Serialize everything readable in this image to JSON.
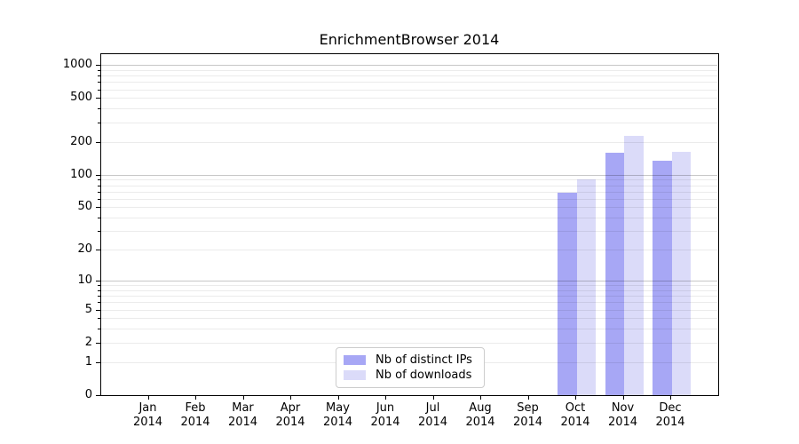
{
  "chart_data": {
    "type": "bar",
    "title": "EnrichmentBrowser 2014",
    "yscale": "log1p",
    "grid": true,
    "ylim": [
      0,
      1180
    ],
    "yticks": [
      0,
      1,
      2,
      5,
      10,
      20,
      50,
      100,
      200,
      500,
      1000
    ],
    "minor_gridlines": [
      3,
      4,
      6,
      7,
      8,
      9,
      30,
      40,
      60,
      70,
      80,
      90,
      300,
      400,
      600,
      700,
      800,
      900
    ],
    "categories": [
      {
        "month": "Jan",
        "year": "2014"
      },
      {
        "month": "Feb",
        "year": "2014"
      },
      {
        "month": "Mar",
        "year": "2014"
      },
      {
        "month": "Apr",
        "year": "2014"
      },
      {
        "month": "May",
        "year": "2014"
      },
      {
        "month": "Jun",
        "year": "2014"
      },
      {
        "month": "Jul",
        "year": "2014"
      },
      {
        "month": "Aug",
        "year": "2014"
      },
      {
        "month": "Sep",
        "year": "2014"
      },
      {
        "month": "Oct",
        "year": "2014"
      },
      {
        "month": "Nov",
        "year": "2014"
      },
      {
        "month": "Dec",
        "year": "2014"
      }
    ],
    "series": [
      {
        "name": "Nb of distinct IPs",
        "color": "#a7a7f5",
        "values": [
          null,
          null,
          null,
          null,
          null,
          null,
          null,
          null,
          null,
          68,
          160,
          135
        ]
      },
      {
        "name": "Nb of downloads",
        "color": "#dbdbf9",
        "values": [
          null,
          null,
          null,
          null,
          null,
          null,
          null,
          null,
          null,
          90,
          228,
          163
        ]
      }
    ],
    "legend_position": "lower center"
  }
}
